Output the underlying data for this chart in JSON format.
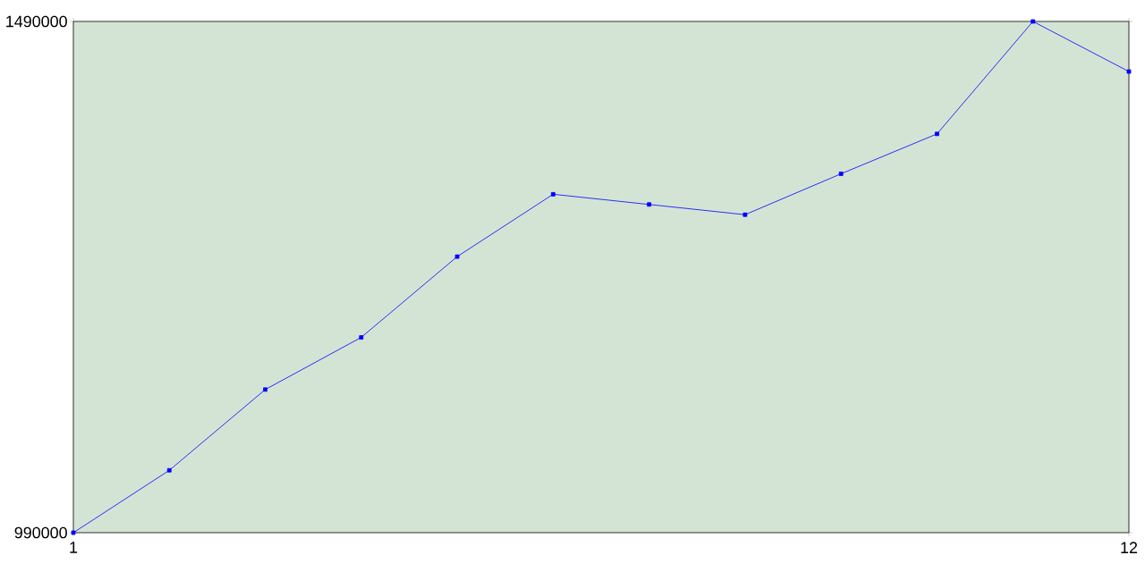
{
  "chart_data": {
    "type": "line",
    "x": [
      1,
      2,
      3,
      4,
      5,
      6,
      7,
      8,
      9,
      10,
      11,
      12
    ],
    "values": [
      990000,
      1051000,
      1130000,
      1181000,
      1260000,
      1321000,
      1311000,
      1301000,
      1341000,
      1380000,
      1490000,
      1441000
    ],
    "color": "#0000ff",
    "marker": "square",
    "xlim": [
      1,
      12
    ],
    "ylim": [
      990000,
      1490000
    ],
    "xticks": [
      1,
      12
    ],
    "yticks": [
      990000,
      1490000
    ],
    "grid": false
  }
}
